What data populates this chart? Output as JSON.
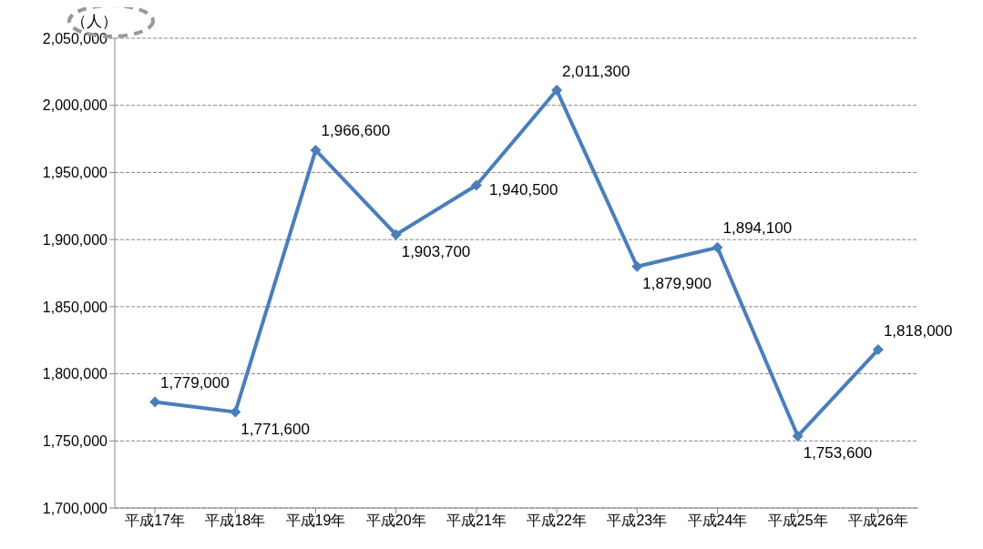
{
  "chart_data": {
    "type": "line",
    "ylabel": "（人）",
    "categories": [
      "平成17年",
      "平成18年",
      "平成19年",
      "平成20年",
      "平成21年",
      "平成22年",
      "平成23年",
      "平成24年",
      "平成25年",
      "平成26年"
    ],
    "series": [
      {
        "color": "#4a7ebb",
        "values": [
          1779000,
          1771600,
          1966600,
          1903700,
          1940500,
          2011300,
          1879900,
          1894100,
          1753600,
          1818000
        ],
        "value_labels": [
          "1,779,000",
          "1,771,600",
          "1,966,600",
          "1,903,700",
          "1,940,500",
          "2,011,300",
          "1,879,900",
          "1,894,100",
          "1,753,600",
          "1,818,000"
        ]
      }
    ],
    "ylim": [
      1700000,
      2050000
    ],
    "yticks": [
      {
        "value": 1700000,
        "label": "1,700,000"
      },
      {
        "value": 1750000,
        "label": "1,750,000"
      },
      {
        "value": 1800000,
        "label": "1,800,000"
      },
      {
        "value": 1850000,
        "label": "1,850,000"
      },
      {
        "value": 1900000,
        "label": "1,900,000"
      },
      {
        "value": 1950000,
        "label": "1,950,000"
      },
      {
        "value": 2000000,
        "label": "2,000,000"
      },
      {
        "value": 2050000,
        "label": "2,050,000"
      }
    ],
    "grid": "y",
    "marker": "diamond",
    "line_style": "solid",
    "legend": false
  }
}
